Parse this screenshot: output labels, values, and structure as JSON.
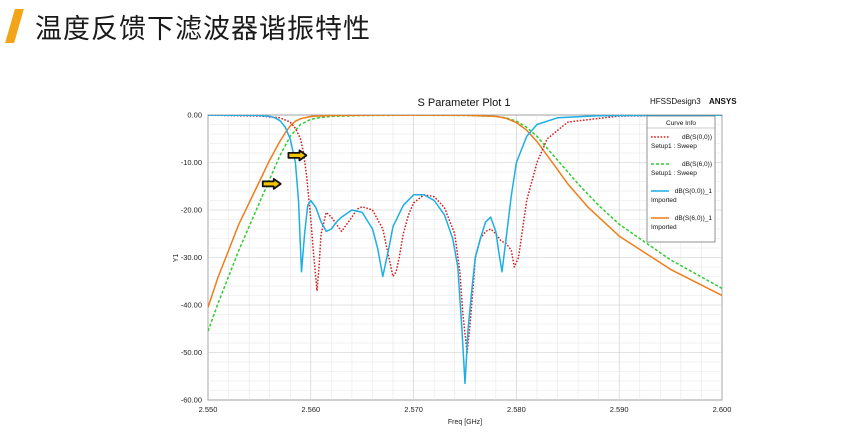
{
  "slide": {
    "title": "温度反馈下滤波器谐振特性"
  },
  "colors": {
    "accent": "#f2a516"
  },
  "chart_data": {
    "type": "line",
    "title": "S Parameter Plot 1",
    "brand_left": "HFSSDesign3",
    "brand_right": "ANSYS",
    "xlabel": "Freq [GHz]",
    "ylabel": "Y1",
    "xlim": [
      2.55,
      2.6
    ],
    "ylim": [
      -60,
      0
    ],
    "x_ticks": [
      "2.550",
      "2.560",
      "2.570",
      "2.580",
      "2.590",
      "2.600"
    ],
    "y_ticks": [
      "0.00",
      "-10.00",
      "-20.00",
      "-30.00",
      "-40.00",
      "-50.00",
      "-60.00"
    ],
    "grid": true,
    "legend": {
      "title": "Curve Info",
      "placement": "top-right",
      "entries": [
        {
          "name": "dB(S(0,0))",
          "sub": "Setup1 : Sweep"
        },
        {
          "name": "dB(S(6,0))",
          "sub": "Setup1 : Sweep"
        },
        {
          "name": "dB(S(0,0))_1",
          "sub": "Imported"
        },
        {
          "name": "dB(S(6,0))_1",
          "sub": "Imported"
        }
      ]
    },
    "arrows": [
      {
        "x": 2.5562,
        "y": -14.5
      },
      {
        "x": 2.5587,
        "y": -8.5
      }
    ],
    "series": [
      {
        "name": "dB(S(0,0))",
        "color": "#d42020",
        "dash": "dotted",
        "x": [
          2.55,
          2.555,
          2.557,
          2.558,
          2.5585,
          2.559,
          2.5593,
          2.5596,
          2.56,
          2.5603,
          2.5606,
          2.5608,
          2.561,
          2.5615,
          2.562,
          2.5625,
          2.563,
          2.564,
          2.5645,
          2.565,
          2.566,
          2.567,
          2.5675,
          2.568,
          2.5683,
          2.5686,
          2.569,
          2.5695,
          2.57,
          2.571,
          2.572,
          2.573,
          2.574,
          2.5745,
          2.5748,
          2.5752,
          2.5755,
          2.5758,
          2.576,
          2.5765,
          2.577,
          2.5775,
          2.578,
          2.5785,
          2.579,
          2.5795,
          2.5798,
          2.5802,
          2.5806,
          2.581,
          2.582,
          2.583,
          2.585,
          2.59,
          2.6
        ],
        "y": [
          -0.05,
          -0.2,
          -0.6,
          -1.5,
          -2.8,
          -5,
          -8,
          -13,
          -22,
          -30,
          -37,
          -32,
          -25,
          -20.5,
          -21.5,
          -23,
          -24.5,
          -21.5,
          -19.8,
          -19.3,
          -20,
          -24,
          -29,
          -34,
          -33,
          -30,
          -25,
          -21,
          -18.5,
          -16.8,
          -17.2,
          -19.5,
          -25,
          -33,
          -42,
          -50,
          -44,
          -36,
          -30,
          -26,
          -24.5,
          -24,
          -25,
          -26.5,
          -27,
          -28.5,
          -32,
          -30,
          -24,
          -18,
          -10,
          -5,
          -1.5,
          -0.2,
          -0.05
        ]
      },
      {
        "name": "dB(S(6,0))",
        "color": "#2ecc2e",
        "dash": "dashed",
        "x": [
          2.55,
          2.551,
          2.552,
          2.553,
          2.554,
          2.555,
          2.556,
          2.557,
          2.558,
          2.559,
          2.56,
          2.561,
          2.562,
          2.565,
          2.57,
          2.575,
          2.578,
          2.579,
          2.58,
          2.581,
          2.582,
          2.583,
          2.584,
          2.585,
          2.586,
          2.588,
          2.59,
          2.595,
          2.6
        ],
        "y": [
          -45.5,
          -39.5,
          -34,
          -28.5,
          -23.5,
          -18.5,
          -13.5,
          -8.5,
          -4.5,
          -2,
          -0.9,
          -0.5,
          -0.3,
          -0.1,
          -0.05,
          -0.1,
          -0.3,
          -0.6,
          -1.3,
          -2.6,
          -4.5,
          -7,
          -9.5,
          -12,
          -14.5,
          -19,
          -23,
          -30.5,
          -36.5
        ]
      },
      {
        "name": "dB(S(0,0))_1",
        "color": "#1eaee6",
        "dash": "solid",
        "x": [
          2.55,
          2.553,
          2.555,
          2.556,
          2.5565,
          2.557,
          2.5575,
          2.558,
          2.5585,
          2.5588,
          2.5591,
          2.5594,
          2.5597,
          2.56,
          2.5605,
          2.561,
          2.5615,
          2.562,
          2.5625,
          2.563,
          2.564,
          2.565,
          2.566,
          2.5665,
          2.567,
          2.5673,
          2.5676,
          2.568,
          2.569,
          2.57,
          2.571,
          2.572,
          2.573,
          2.5738,
          2.5743,
          2.5747,
          2.575,
          2.5753,
          2.5757,
          2.576,
          2.5765,
          2.577,
          2.5775,
          2.578,
          2.5783,
          2.5786,
          2.579,
          2.5795,
          2.58,
          2.581,
          2.582,
          2.584,
          2.588,
          2.6
        ],
        "y": [
          -0.02,
          -0.05,
          -0.1,
          -0.3,
          -0.6,
          -1.2,
          -2.5,
          -5,
          -10,
          -18,
          -33,
          -25,
          -19,
          -18,
          -19.5,
          -22.5,
          -24.5,
          -24,
          -22.5,
          -21.5,
          -20,
          -20.5,
          -24,
          -28,
          -34,
          -31,
          -28,
          -23.5,
          -19,
          -16.8,
          -16.8,
          -18,
          -21,
          -26,
          -32,
          -45,
          -56.5,
          -45,
          -36,
          -30,
          -26,
          -22.5,
          -21.5,
          -24.5,
          -29,
          -33,
          -26,
          -17,
          -10,
          -4.5,
          -2,
          -0.6,
          -0.15,
          -0.03
        ]
      },
      {
        "name": "dB(S(6,0))_1",
        "color": "#f07d1a",
        "dash": "solid",
        "x": [
          2.55,
          2.551,
          2.552,
          2.553,
          2.554,
          2.555,
          2.556,
          2.557,
          2.5575,
          2.558,
          2.5585,
          2.559,
          2.56,
          2.562,
          2.565,
          2.57,
          2.575,
          2.578,
          2.579,
          2.58,
          2.581,
          2.582,
          2.583,
          2.584,
          2.585,
          2.587,
          2.59,
          2.595,
          2.6
        ],
        "y": [
          -40.5,
          -34,
          -28.5,
          -23,
          -18.5,
          -14,
          -9.5,
          -5.5,
          -3.8,
          -2.3,
          -1.3,
          -0.8,
          -0.3,
          -0.1,
          -0.05,
          -0.03,
          -0.05,
          -0.3,
          -0.7,
          -1.6,
          -3.2,
          -5.6,
          -8.5,
          -11.5,
          -14.5,
          -19.5,
          -25.5,
          -32.5,
          -38
        ]
      }
    ]
  }
}
